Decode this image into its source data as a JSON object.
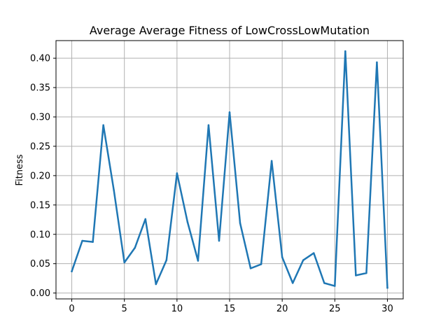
{
  "chart_data": {
    "type": "line",
    "title": "Average Average Fitness of LowCrossLowMutation",
    "xlabel": "",
    "ylabel": "Fitness",
    "xlim": [
      -1.5,
      31.5
    ],
    "ylim": [
      -0.01,
      0.43
    ],
    "xticks": [
      0,
      5,
      10,
      15,
      20,
      25,
      30
    ],
    "yticks": [
      "0.00",
      "0.05",
      "0.10",
      "0.15",
      "0.20",
      "0.25",
      "0.30",
      "0.35",
      "0.40"
    ],
    "grid": true,
    "series": [
      {
        "color": "#1f77b4",
        "x": [
          0,
          1,
          2,
          3,
          4,
          5,
          6,
          7,
          8,
          9,
          10,
          11,
          12,
          13,
          14,
          15,
          16,
          17,
          18,
          19,
          20,
          21,
          22,
          23,
          24,
          25,
          26,
          27,
          28,
          29,
          30
        ],
        "values": [
          0.037,
          0.089,
          0.087,
          0.286,
          0.175,
          0.052,
          0.077,
          0.126,
          0.015,
          0.056,
          0.204,
          0.121,
          0.055,
          0.286,
          0.089,
          0.308,
          0.119,
          0.042,
          0.049,
          0.225,
          0.061,
          0.017,
          0.056,
          0.068,
          0.017,
          0.012,
          0.412,
          0.03,
          0.034,
          0.393,
          0.009
        ]
      }
    ]
  }
}
